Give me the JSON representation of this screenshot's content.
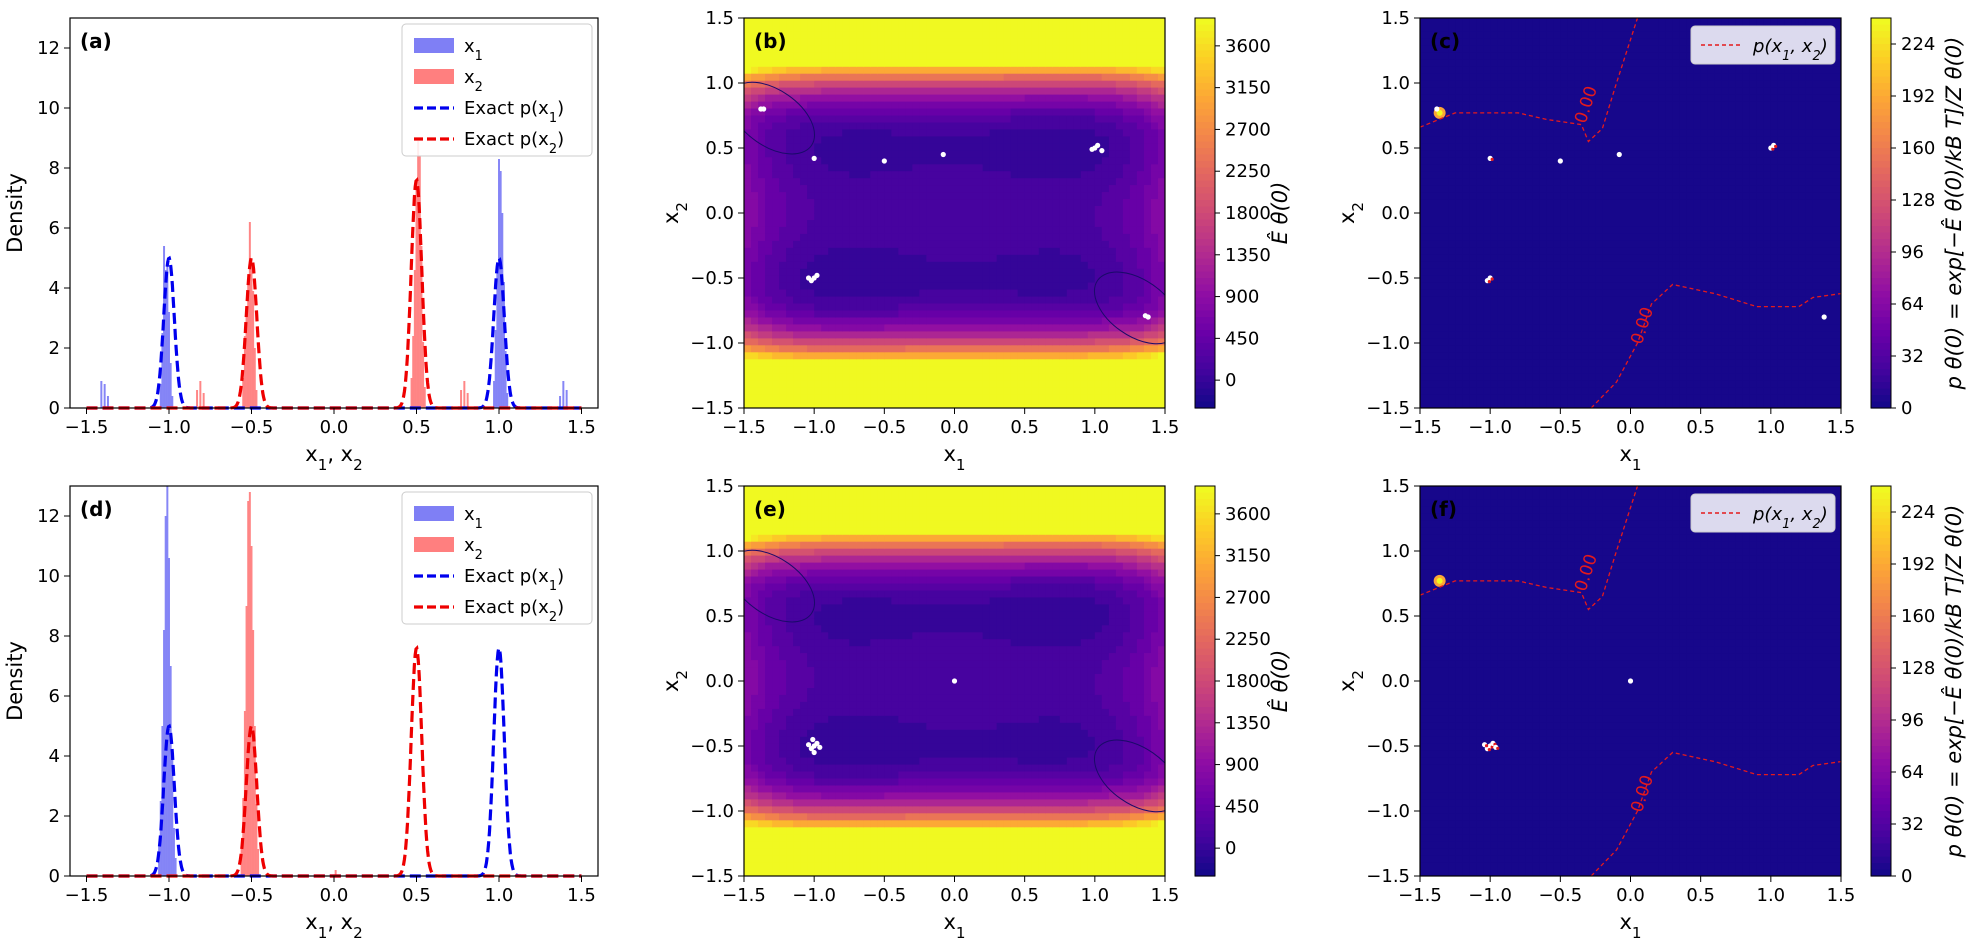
{
  "colors": {
    "x1_hist": "#7f7ff5",
    "x2_hist": "#ff7f7f",
    "x1_exact": "#0000ee",
    "x2_exact": "#ee0000",
    "contour_red": "#e41a1c",
    "samples": "#ffffff",
    "plasma": [
      "#0d0887",
      "#41049d",
      "#6a00a8",
      "#8f0da4",
      "#b12a90",
      "#cc4778",
      "#e16462",
      "#f2844b",
      "#fca636",
      "#fcce25",
      "#f0f921"
    ]
  },
  "chart_data": [
    {
      "id": "a",
      "type": "bar",
      "panel_label": "(a)",
      "xlabel": "x1, x2",
      "ylabel": "Density",
      "xlim": [
        -1.6,
        1.6
      ],
      "ylim": [
        0,
        13
      ],
      "xticks": [
        "-1.5",
        "-1.0",
        "-0.5",
        "0.0",
        "0.5",
        "1.0",
        "1.5"
      ],
      "yticks": [
        "0",
        "2",
        "4",
        "6",
        "8",
        "10",
        "12"
      ],
      "legend": {
        "position": "top-right",
        "entries": [
          "x1",
          "x2",
          "Exact p(x1)",
          "Exact p(x2)"
        ]
      },
      "histograms": [
        {
          "name": "x1",
          "bins": [
            [
              -1.41,
              0.9
            ],
            [
              -1.39,
              0.8
            ],
            [
              -1.37,
              0.4
            ],
            [
              -1.05,
              0.8
            ],
            [
              -1.04,
              2.5
            ],
            [
              -1.03,
              5.4
            ],
            [
              -1.02,
              4.6
            ],
            [
              -1.01,
              4.9
            ],
            [
              -1.0,
              3.2
            ],
            [
              -0.99,
              1.5
            ],
            [
              -0.98,
              0.4
            ],
            [
              0.97,
              0.9
            ],
            [
              0.98,
              2.6
            ],
            [
              0.99,
              4.8
            ],
            [
              1.0,
              8.3
            ],
            [
              1.01,
              7.9
            ],
            [
              1.02,
              6.5
            ],
            [
              1.03,
              4.2
            ],
            [
              1.04,
              1.9
            ],
            [
              1.05,
              0.5
            ],
            [
              1.37,
              0.4
            ],
            [
              1.39,
              0.9
            ],
            [
              1.41,
              0.6
            ]
          ]
        },
        {
          "name": "x2",
          "bins": [
            [
              -0.83,
              0.6
            ],
            [
              -0.81,
              0.9
            ],
            [
              -0.79,
              0.5
            ],
            [
              -0.55,
              1.0
            ],
            [
              -0.54,
              2.4
            ],
            [
              -0.53,
              3.4
            ],
            [
              -0.52,
              4.3
            ],
            [
              -0.51,
              6.2
            ],
            [
              -0.5,
              5.0
            ],
            [
              -0.49,
              3.9
            ],
            [
              -0.48,
              2.0
            ],
            [
              -0.47,
              0.6
            ],
            [
              0.47,
              1.0
            ],
            [
              0.48,
              2.4
            ],
            [
              0.49,
              4.6
            ],
            [
              0.5,
              7.3
            ],
            [
              0.51,
              8.9
            ],
            [
              0.52,
              8.4
            ],
            [
              0.53,
              5.4
            ],
            [
              0.54,
              2.2
            ],
            [
              0.55,
              0.7
            ],
            [
              0.77,
              0.6
            ],
            [
              0.79,
              0.9
            ],
            [
              0.81,
              0.5
            ]
          ]
        }
      ],
      "exact": [
        {
          "name": "Exact p(x1)",
          "centers": [
            -1.0,
            1.0
          ],
          "peak": 5.0,
          "width": 0.032
        },
        {
          "name": "Exact p(x2)",
          "centers": [
            -0.5,
            0.5
          ],
          "peak": 5.0,
          "width": 0.032,
          "peaks": [
            5.0,
            7.6
          ]
        }
      ]
    },
    {
      "id": "b",
      "type": "heatmap",
      "panel_label": "(b)",
      "xlabel": "x1",
      "ylabel": "x2",
      "xlim": [
        -1.5,
        1.5
      ],
      "ylim": [
        -1.5,
        1.5
      ],
      "xticks": [
        "-1.5",
        "-1.0",
        "-0.5",
        "0.0",
        "0.5",
        "1.0",
        "1.5"
      ],
      "yticks": [
        "-1.5",
        "-1.0",
        "-0.5",
        "0.0",
        "0.5",
        "1.0",
        "1.5"
      ],
      "colorbar": {
        "label": "Ê θ(0)",
        "ticks": [
          "0",
          "450",
          "900",
          "1350",
          "1800",
          "2250",
          "2700",
          "3150",
          "3600"
        ],
        "range": [
          -300,
          3900
        ]
      },
      "samples": [
        [
          -1.38,
          0.8
        ],
        [
          -1.36,
          0.8
        ],
        [
          -1.0,
          0.42
        ],
        [
          -0.5,
          0.4
        ],
        [
          -0.08,
          0.45
        ],
        [
          1.0,
          0.5
        ],
        [
          1.02,
          0.52
        ],
        [
          0.98,
          0.49
        ],
        [
          1.05,
          0.48
        ],
        [
          -1.0,
          -0.5
        ],
        [
          -1.02,
          -0.52
        ],
        [
          -0.98,
          -0.48
        ],
        [
          -1.04,
          -0.5
        ],
        [
          1.38,
          -0.8
        ],
        [
          1.36,
          -0.79
        ]
      ]
    },
    {
      "id": "c",
      "type": "heatmap",
      "panel_label": "(c)",
      "xlabel": "x1",
      "ylabel": "x2",
      "xlim": [
        -1.5,
        1.5
      ],
      "ylim": [
        -1.5,
        1.5
      ],
      "xticks": [
        "-1.5",
        "-1.0",
        "-0.5",
        "0.0",
        "0.5",
        "1.0",
        "1.5"
      ],
      "yticks": [
        "-1.5",
        "-1.0",
        "-0.5",
        "0.0",
        "0.5",
        "1.0",
        "1.5"
      ],
      "colorbar": {
        "label": "p θ(0) = exp[−Ê θ(0)/kB T]/Z θ(0)",
        "ticks": [
          "0",
          "32",
          "64",
          "96",
          "128",
          "160",
          "192",
          "224"
        ],
        "range": [
          0,
          240
        ]
      },
      "legend": {
        "position": "top-right",
        "entries": [
          "p(x1, x2)"
        ]
      },
      "contour_label": "0.00",
      "samples": [
        [
          -1.38,
          0.8
        ],
        [
          -1.0,
          0.42
        ],
        [
          -0.5,
          0.4
        ],
        [
          -0.08,
          0.45
        ],
        [
          1.0,
          0.5
        ],
        [
          1.02,
          0.52
        ],
        [
          -1.0,
          -0.5
        ],
        [
          -1.02,
          -0.52
        ],
        [
          1.38,
          -0.8
        ]
      ]
    },
    {
      "id": "d",
      "type": "bar",
      "panel_label": "(d)",
      "xlabel": "x1, x2",
      "ylabel": "Density",
      "xlim": [
        -1.6,
        1.6
      ],
      "ylim": [
        0,
        13
      ],
      "xticks": [
        "-1.5",
        "-1.0",
        "-0.5",
        "0.0",
        "0.5",
        "1.0",
        "1.5"
      ],
      "yticks": [
        "0",
        "2",
        "4",
        "6",
        "8",
        "10",
        "12"
      ],
      "legend": {
        "position": "top-right",
        "entries": [
          "x1",
          "x2",
          "Exact p(x1)",
          "Exact p(x2)"
        ]
      },
      "histograms": [
        {
          "name": "x1",
          "bins": [
            [
              -1.06,
              1.0
            ],
            [
              -1.05,
              2.5
            ],
            [
              -1.04,
              5.0
            ],
            [
              -1.03,
              8.2
            ],
            [
              -1.02,
              12.0
            ],
            [
              -1.01,
              13.0
            ],
            [
              -1.0,
              10.6
            ],
            [
              -0.99,
              7.0
            ],
            [
              -0.98,
              4.0
            ],
            [
              -0.97,
              1.6
            ],
            [
              -0.96,
              0.6
            ]
          ]
        },
        {
          "name": "x2",
          "bins": [
            [
              -0.56,
              1.0
            ],
            [
              -0.55,
              2.6
            ],
            [
              -0.54,
              5.5
            ],
            [
              -0.53,
              9.0
            ],
            [
              -0.52,
              12.5
            ],
            [
              -0.51,
              12.8
            ],
            [
              -0.5,
              11.0
            ],
            [
              -0.49,
              8.2
            ],
            [
              -0.48,
              5.0
            ],
            [
              -0.47,
              2.4
            ],
            [
              -0.46,
              0.9
            ],
            [
              0.01,
              0.2
            ]
          ]
        }
      ],
      "exact": [
        {
          "name": "Exact p(x1)",
          "centers": [
            -1.0,
            1.0
          ],
          "peak": 5.0,
          "width": 0.032,
          "peaks": [
            5.0,
            7.6
          ]
        },
        {
          "name": "Exact p(x2)",
          "centers": [
            -0.5,
            0.5
          ],
          "peak": 5.0,
          "width": 0.032,
          "peaks": [
            5.0,
            7.6
          ]
        }
      ]
    },
    {
      "id": "e",
      "type": "heatmap",
      "panel_label": "(e)",
      "xlabel": "x1",
      "ylabel": "x2",
      "xlim": [
        -1.5,
        1.5
      ],
      "ylim": [
        -1.5,
        1.5
      ],
      "xticks": [
        "-1.5",
        "-1.0",
        "-0.5",
        "0.0",
        "0.5",
        "1.0",
        "1.5"
      ],
      "yticks": [
        "-1.5",
        "-1.0",
        "-0.5",
        "0.0",
        "0.5",
        "1.0",
        "1.5"
      ],
      "colorbar": {
        "label": "Ê θ(0)",
        "ticks": [
          "0",
          "450",
          "900",
          "1350",
          "1800",
          "2250",
          "2700",
          "3150",
          "3600"
        ],
        "range": [
          -300,
          3900
        ]
      },
      "samples": [
        [
          0.0,
          0.0
        ],
        [
          -1.0,
          -0.5
        ],
        [
          -1.02,
          -0.52
        ],
        [
          -0.98,
          -0.48
        ],
        [
          -1.04,
          -0.49
        ],
        [
          -0.96,
          -0.51
        ],
        [
          -1.0,
          -0.55
        ],
        [
          -1.01,
          -0.45
        ]
      ]
    },
    {
      "id": "f",
      "type": "heatmap",
      "panel_label": "(f)",
      "xlabel": "x1",
      "ylabel": "x2",
      "xlim": [
        -1.5,
        1.5
      ],
      "ylim": [
        -1.5,
        1.5
      ],
      "xticks": [
        "-1.5",
        "-1.0",
        "-0.5",
        "0.0",
        "0.5",
        "1.0",
        "1.5"
      ],
      "yticks": [
        "-1.5",
        "-1.0",
        "-0.5",
        "0.0",
        "0.5",
        "1.0",
        "1.5"
      ],
      "colorbar": {
        "label": "p θ(0) = exp[−Ê θ(0)/kB T]/Z θ(0)",
        "ticks": [
          "0",
          "32",
          "64",
          "96",
          "128",
          "160",
          "192",
          "224"
        ],
        "range": [
          0,
          240
        ]
      },
      "legend": {
        "position": "top-right",
        "entries": [
          "p(x1, x2)"
        ]
      },
      "contour_label": "0.00",
      "samples": [
        [
          0.0,
          0.0
        ],
        [
          -1.0,
          -0.5
        ],
        [
          -1.02,
          -0.52
        ],
        [
          -0.98,
          -0.48
        ],
        [
          -1.04,
          -0.49
        ],
        [
          -0.96,
          -0.51
        ]
      ]
    }
  ]
}
